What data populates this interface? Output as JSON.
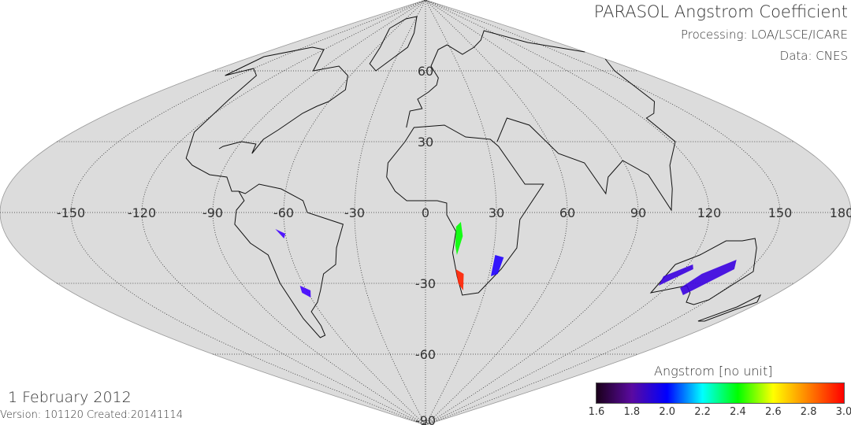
{
  "header": {
    "title": "PARASOL Angstrom Coefficient",
    "processing": "Processing: LOA/LSCE/ICARE",
    "data_source": "Data: CNES"
  },
  "footer": {
    "date": "1 February 2012",
    "version": "Version: 101120  Created:20141114"
  },
  "map": {
    "projection": "sinusoidal",
    "background": "#dcdcdc",
    "lon_labels": [
      "-150",
      "-120",
      "-90",
      "-60",
      "-30",
      "0",
      "30",
      "60",
      "90",
      "120",
      "150",
      "180"
    ],
    "lat_labels": [
      "60",
      "30",
      "-30",
      "-60",
      "-90"
    ],
    "grid": "dotted every 30 degrees"
  },
  "colorbar": {
    "title": "Angstrom [no unit]",
    "min": 1.6,
    "max": 3.0,
    "tick_labels": [
      "1.6",
      "1.8",
      "2.0",
      "2.2",
      "2.4",
      "2.6",
      "2.8",
      "3.0"
    ],
    "colors": [
      "#1a001a",
      "#5a0aa0",
      "#0000ff",
      "#00ffff",
      "#00ff00",
      "#ffff00",
      "#ff8000",
      "#ff0000"
    ]
  }
}
